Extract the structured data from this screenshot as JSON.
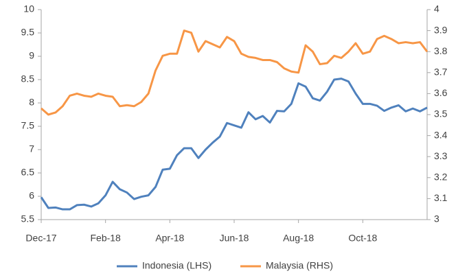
{
  "chart_data": {
    "type": "line",
    "categories": [
      "Dec-17",
      null,
      null,
      null,
      null,
      null,
      null,
      null,
      null,
      "Feb-18",
      null,
      null,
      null,
      null,
      null,
      null,
      null,
      null,
      "Apr-18",
      null,
      null,
      null,
      null,
      null,
      null,
      null,
      null,
      "Jun-18",
      null,
      null,
      null,
      null,
      null,
      null,
      null,
      null,
      "Aug-18",
      null,
      null,
      null,
      null,
      null,
      null,
      null,
      null,
      "Oct-18",
      null,
      null,
      null,
      null,
      null,
      null,
      null,
      null,
      null
    ],
    "series": [
      {
        "name": "Indonesia (LHS)",
        "color": "#4f81bd",
        "axis": "y",
        "values": [
          5.98,
          5.75,
          5.76,
          5.72,
          5.72,
          5.81,
          5.82,
          5.78,
          5.85,
          6.02,
          6.31,
          6.15,
          6.08,
          5.94,
          5.99,
          6.02,
          6.2,
          6.57,
          6.59,
          6.88,
          7.03,
          7.03,
          6.82,
          7.0,
          7.15,
          7.28,
          7.57,
          7.52,
          7.47,
          7.8,
          7.65,
          7.72,
          7.58,
          7.83,
          7.82,
          7.98,
          8.42,
          8.35,
          8.1,
          8.05,
          8.24,
          8.5,
          8.52,
          8.46,
          8.2,
          7.98,
          7.98,
          7.94,
          7.83,
          7.9,
          7.95,
          7.82,
          7.88,
          7.82,
          7.9
        ]
      },
      {
        "name": "Malaysia (RHS)",
        "color": "#f79646",
        "axis": "y2",
        "values": [
          3.53,
          3.5,
          3.51,
          3.54,
          3.59,
          3.6,
          3.59,
          3.585,
          3.6,
          3.59,
          3.585,
          3.54,
          3.545,
          3.54,
          3.56,
          3.6,
          3.71,
          3.78,
          3.79,
          3.79,
          3.9,
          3.89,
          3.8,
          3.85,
          3.835,
          3.82,
          3.87,
          3.85,
          3.79,
          3.775,
          3.77,
          3.76,
          3.76,
          3.75,
          3.72,
          3.705,
          3.7,
          3.83,
          3.8,
          3.74,
          3.745,
          3.78,
          3.77,
          3.8,
          3.84,
          3.79,
          3.8,
          3.86,
          3.875,
          3.86,
          3.84,
          3.845,
          3.84,
          3.845,
          3.8
        ]
      }
    ],
    "ylim": [
      5.5,
      10
    ],
    "yticks": [
      5.5,
      6,
      6.5,
      7,
      7.5,
      8,
      8.5,
      9,
      9.5,
      10
    ],
    "y2lim": [
      3,
      4
    ],
    "y2ticks": [
      3,
      3.1,
      3.2,
      3.3,
      3.4,
      3.5,
      3.6,
      3.7,
      3.8,
      3.9,
      4
    ],
    "legend": "bottom"
  }
}
